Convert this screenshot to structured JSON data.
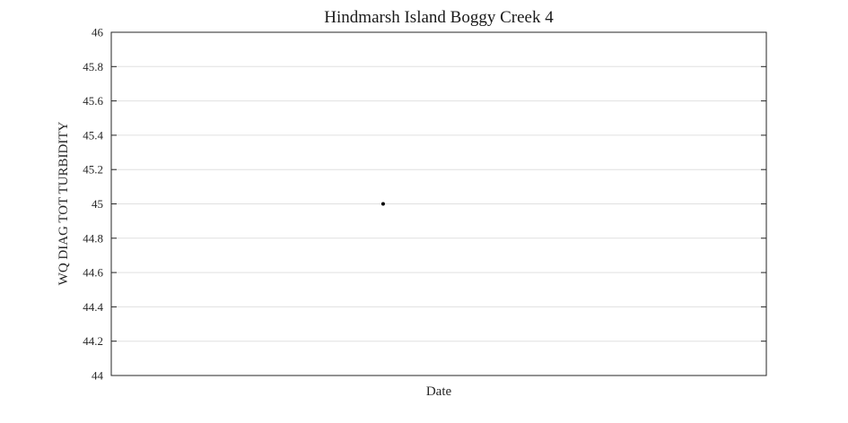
{
  "chart_data": {
    "type": "scatter",
    "title": "Hindmarsh Island Boggy Creek 4",
    "xlabel": "Date",
    "ylabel": "WQ DIAG TOT TURBIDITY",
    "ylim": [
      44,
      46
    ],
    "yticks": [
      "44",
      "44.2",
      "44.4",
      "44.6",
      "44.8",
      "45",
      "45.2",
      "45.4",
      "45.6",
      "45.8",
      "46"
    ],
    "xticks": [],
    "xlim": [
      0,
      1
    ],
    "grid": true,
    "series": [
      {
        "points": [
          {
            "x": 0.415,
            "y": 45
          }
        ],
        "color": "#000000"
      }
    ]
  }
}
